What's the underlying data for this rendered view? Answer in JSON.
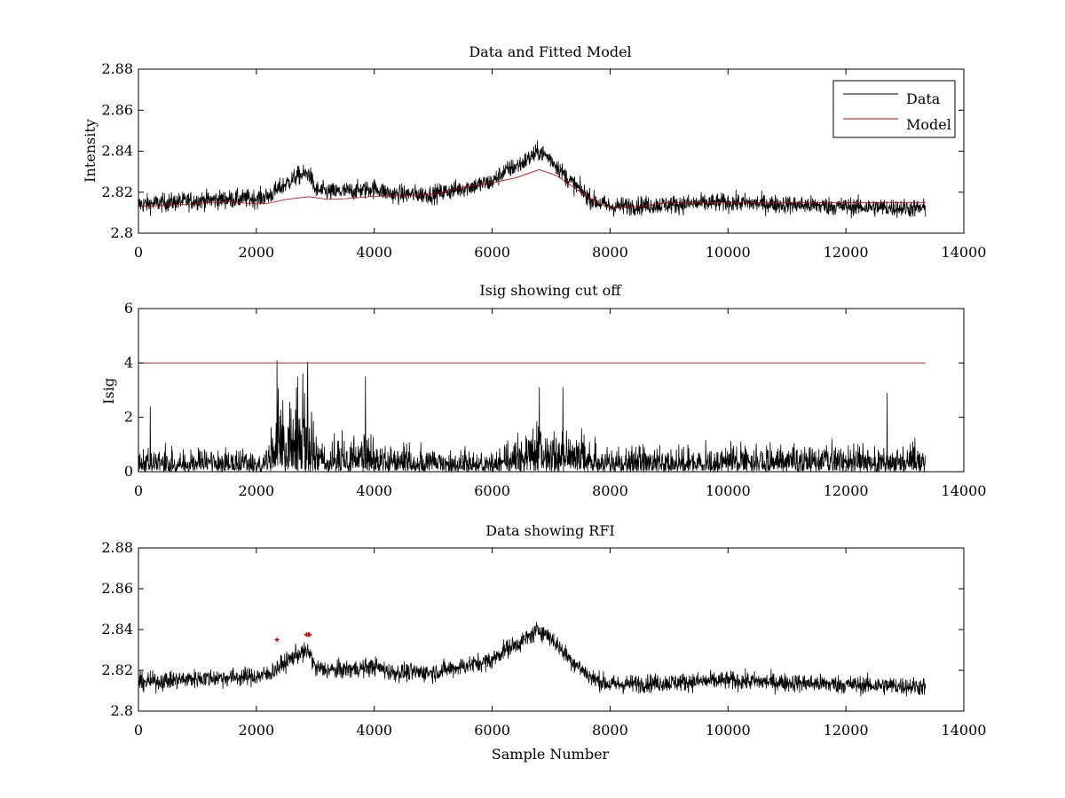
{
  "figure": {
    "xlabel": "Sample Number"
  },
  "chart_data": [
    {
      "type": "line",
      "title": "Data and Fitted Model",
      "xlabel": "",
      "ylabel": "Intensity",
      "xlim": [
        0,
        14000
      ],
      "ylim": [
        2.8,
        2.88
      ],
      "xticks": [
        0,
        2000,
        4000,
        6000,
        8000,
        10000,
        12000,
        14000
      ],
      "yticks": [
        2.8,
        2.82,
        2.84,
        2.86,
        2.88
      ],
      "xtick_labels": [
        "0",
        "2000",
        "4000",
        "6000",
        "8000",
        "10000",
        "12000",
        "14000"
      ],
      "ytick_labels": [
        "2.8",
        "2.82",
        "2.84",
        "2.86",
        "2.88"
      ],
      "legend": [
        "Data",
        "Model"
      ],
      "legend_position": "top-right",
      "series": [
        {
          "name": "Data",
          "color": "#000000",
          "noise": 0.0045,
          "x": [
            0,
            1000,
            2000,
            2200,
            2400,
            2700,
            2900,
            3000,
            3300,
            3800,
            4000,
            4300,
            5000,
            6000,
            6200,
            6500,
            6800,
            7000,
            7300,
            7700,
            8000,
            9000,
            10000,
            11000,
            12000,
            13350
          ],
          "y": [
            2.814,
            2.816,
            2.817,
            2.818,
            2.822,
            2.828,
            2.829,
            2.821,
            2.82,
            2.821,
            2.822,
            2.819,
            2.819,
            2.825,
            2.83,
            2.834,
            2.84,
            2.836,
            2.826,
            2.816,
            2.813,
            2.814,
            2.815,
            2.814,
            2.813,
            2.812
          ]
        },
        {
          "name": "Model",
          "color": "#cc0000",
          "x": [
            0,
            500,
            1000,
            1500,
            2000,
            2200,
            2500,
            2900,
            3200,
            3500,
            4000,
            4500,
            5000,
            5500,
            6000,
            6400,
            6800,
            7100,
            7500,
            7800,
            8000,
            8500,
            9000,
            10000,
            11000,
            12000,
            13350
          ],
          "y": [
            2.813,
            2.8135,
            2.8145,
            2.8155,
            2.8142,
            2.8146,
            2.8165,
            2.8178,
            2.8165,
            2.8168,
            2.818,
            2.8182,
            2.819,
            2.8225,
            2.8245,
            2.827,
            2.831,
            2.828,
            2.82,
            2.8145,
            2.8125,
            2.813,
            2.815,
            2.815,
            2.815,
            2.815,
            2.815
          ]
        }
      ]
    },
    {
      "type": "line",
      "title": "Isig showing cut off",
      "xlabel": "",
      "ylabel": "Isig",
      "xlim": [
        0,
        14000
      ],
      "ylim": [
        0,
        6
      ],
      "xticks": [
        0,
        2000,
        4000,
        6000,
        8000,
        10000,
        12000,
        14000
      ],
      "yticks": [
        0,
        2,
        4,
        6
      ],
      "xtick_labels": [
        "0",
        "2000",
        "4000",
        "6000",
        "8000",
        "10000",
        "12000",
        "14000"
      ],
      "ytick_labels": [
        "0",
        "2",
        "4",
        "6"
      ],
      "series": [
        {
          "name": "Isig",
          "color": "#000000",
          "noise_type": "abs",
          "x": [
            0,
            2200,
            2300,
            2600,
            2850,
            2950,
            3100,
            3500,
            3800,
            4000,
            4200,
            4500,
            6000,
            6700,
            6800,
            7000,
            7200,
            7500,
            7800,
            12000,
            13350
          ],
          "y": [
            0.7,
            0.7,
            1.6,
            2.3,
            2.6,
            1.6,
            0.8,
            0.9,
            1.2,
            1.1,
            0.7,
            0.7,
            0.7,
            1.2,
            1.3,
            1.3,
            1.5,
            1.3,
            0.7,
            0.8,
            0.8
          ],
          "spikes": [
            [
              2350,
              4.1
            ],
            [
              2870,
              4.05
            ],
            [
              2700,
              3.5
            ],
            [
              3850,
              3.5
            ],
            [
              6800,
              3.1
            ],
            [
              7200,
              3.1
            ],
            [
              12700,
              2.9
            ],
            [
              200,
              2.4
            ]
          ]
        },
        {
          "name": "Cut off",
          "color": "#cc0000",
          "x": [
            0,
            13350
          ],
          "y": [
            4,
            4
          ]
        }
      ]
    },
    {
      "type": "line",
      "title": "Data showing RFI",
      "xlabel": "Sample Number",
      "ylabel": "",
      "xlim": [
        0,
        14000
      ],
      "ylim": [
        2.8,
        2.88
      ],
      "xticks": [
        0,
        2000,
        4000,
        6000,
        8000,
        10000,
        12000,
        14000
      ],
      "yticks": [
        2.8,
        2.82,
        2.84,
        2.86,
        2.88
      ],
      "xtick_labels": [
        "0",
        "2000",
        "4000",
        "6000",
        "8000",
        "10000",
        "12000",
        "14000"
      ],
      "ytick_labels": [
        "2.8",
        "2.82",
        "2.84",
        "2.86",
        "2.88"
      ],
      "series": [
        {
          "name": "Data",
          "color": "#000000",
          "noise": 0.0045,
          "x": [
            0,
            1000,
            2000,
            2200,
            2400,
            2700,
            2900,
            3000,
            3300,
            3800,
            4000,
            4300,
            5000,
            6000,
            6200,
            6500,
            6800,
            7000,
            7300,
            7700,
            8000,
            9000,
            10000,
            11000,
            12000,
            13350
          ],
          "y": [
            2.814,
            2.816,
            2.817,
            2.818,
            2.822,
            2.828,
            2.829,
            2.821,
            2.82,
            2.821,
            2.822,
            2.819,
            2.819,
            2.825,
            2.83,
            2.834,
            2.84,
            2.836,
            2.826,
            2.816,
            2.813,
            2.814,
            2.815,
            2.814,
            2.813,
            2.812
          ]
        }
      ],
      "markers": {
        "name": "RFI",
        "color": "#cc0000",
        "x": [
          2350,
          2850,
          2880,
          2900
        ],
        "y": [
          2.835,
          2.8375,
          2.8375,
          2.8375
        ]
      }
    }
  ]
}
